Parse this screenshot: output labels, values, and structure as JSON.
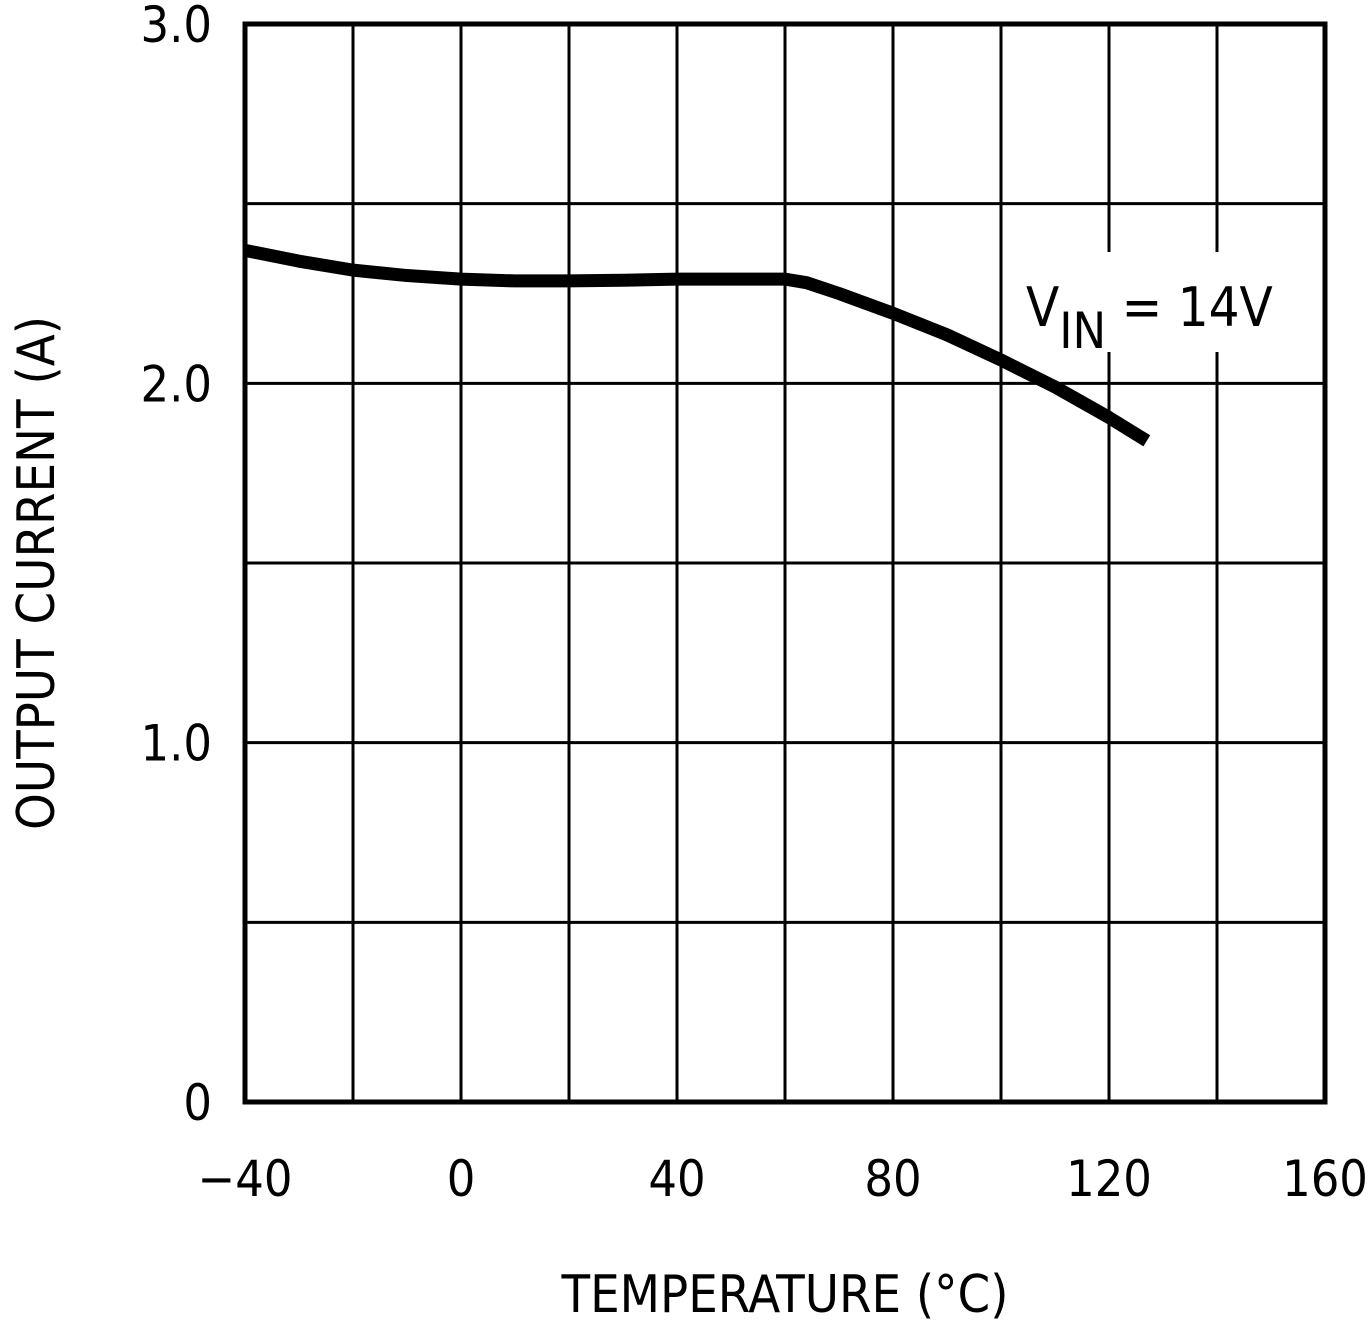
{
  "chart_data": {
    "type": "line",
    "title": "",
    "xlabel": "TEMPERATURE (°C)",
    "ylabel": "OUTPUT CURRENT (A)",
    "xlim": [
      -40,
      160
    ],
    "ylim": [
      0,
      3.0
    ],
    "x_ticks": [
      -40,
      0,
      40,
      80,
      120,
      160
    ],
    "x_tick_labels": [
      "−40",
      "0",
      "40",
      "80",
      "120",
      "160"
    ],
    "y_ticks": [
      0,
      1.0,
      2.0,
      3.0
    ],
    "y_tick_labels": [
      "0",
      "1.0",
      "2.0",
      "3.0"
    ],
    "x_grid": [
      -40,
      -20,
      0,
      20,
      40,
      60,
      80,
      100,
      120,
      140,
      160
    ],
    "y_grid": [
      0,
      0.5,
      1.0,
      1.5,
      2.0,
      2.5,
      3.0
    ],
    "grid": true,
    "series": [
      {
        "x": [
          -40,
          -30,
          -20,
          -10,
          0,
          10,
          20,
          30,
          40,
          50,
          60,
          64,
          70,
          80,
          90,
          100,
          110,
          120,
          127
        ],
        "values": [
          2.37,
          2.34,
          2.315,
          2.3,
          2.29,
          2.285,
          2.285,
          2.287,
          2.29,
          2.29,
          2.29,
          2.28,
          2.25,
          2.195,
          2.135,
          2.065,
          1.99,
          1.905,
          1.84
        ]
      }
    ],
    "annotation": {
      "main": "V",
      "subscript": "IN",
      "rest": " = 14V"
    },
    "colors": {
      "line": "#000000",
      "grid": "#000000",
      "background": "#ffffff"
    }
  }
}
